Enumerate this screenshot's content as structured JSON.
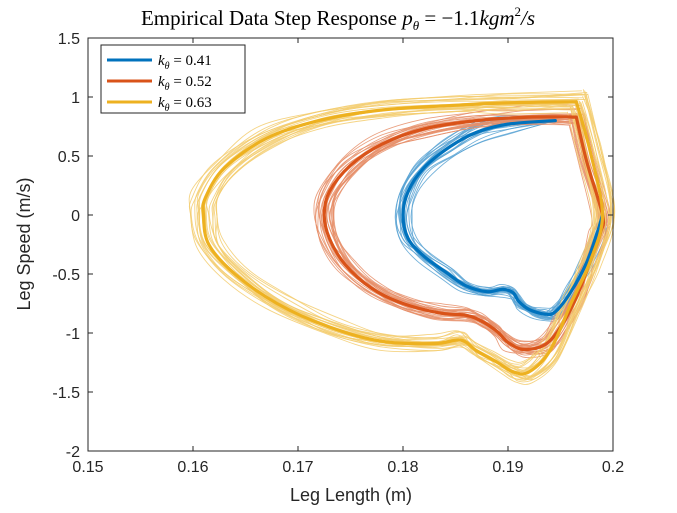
{
  "chart_data": {
    "type": "line",
    "title": "Empirical Data Step Response p_θ = −1.1kgm²/s",
    "title_parts": {
      "prefix": "Empirical Data Step Response ",
      "var": "p",
      "sub": "θ",
      "eq": " = −1.1",
      "unit": "kgm",
      "sup": "2",
      "tail": "/s"
    },
    "xlabel": "Leg Length (m)",
    "ylabel": "Leg Speed (m/s)",
    "xlim": [
      0.15,
      0.2
    ],
    "ylim": [
      -2,
      1.5
    ],
    "x_ticks": [
      "0.15",
      "0.16",
      "0.17",
      "0.18",
      "0.19",
      "0.2"
    ],
    "y_ticks": [
      "1.5",
      "1",
      "0.5",
      "0",
      "-0.5",
      "-1",
      "-1.5",
      "-2"
    ],
    "grid": false,
    "legend_position": "top-left",
    "series": [
      {
        "name": "k_θ = 0.41",
        "legend_label": {
          "var": "k",
          "sub": "θ",
          "rest": " = 0.41"
        },
        "color": "#0072BD",
        "points": [
          [
            0.1945,
            0.8
          ],
          [
            0.19,
            0.77
          ],
          [
            0.187,
            0.7
          ],
          [
            0.1845,
            0.58
          ],
          [
            0.182,
            0.4
          ],
          [
            0.1805,
            0.2
          ],
          [
            0.18,
            0.0
          ],
          [
            0.1805,
            -0.2
          ],
          [
            0.182,
            -0.35
          ],
          [
            0.184,
            -0.48
          ],
          [
            0.186,
            -0.6
          ],
          [
            0.188,
            -0.65
          ],
          [
            0.1895,
            -0.63
          ],
          [
            0.1905,
            -0.66
          ],
          [
            0.191,
            -0.73
          ],
          [
            0.192,
            -0.8
          ],
          [
            0.1935,
            -0.84
          ],
          [
            0.1945,
            -0.82
          ],
          [
            0.196,
            -0.65
          ],
          [
            0.1975,
            -0.4
          ],
          [
            0.1985,
            -0.15
          ],
          [
            0.199,
            0.0
          ]
        ]
      },
      {
        "name": "k_θ = 0.52",
        "legend_label": {
          "var": "k",
          "sub": "θ",
          "rest": " = 0.52"
        },
        "color": "#D95319",
        "points": [
          [
            0.1965,
            0.83
          ],
          [
            0.192,
            0.83
          ],
          [
            0.187,
            0.8
          ],
          [
            0.182,
            0.73
          ],
          [
            0.178,
            0.6
          ],
          [
            0.175,
            0.42
          ],
          [
            0.173,
            0.2
          ],
          [
            0.1725,
            0.0
          ],
          [
            0.173,
            -0.2
          ],
          [
            0.1745,
            -0.42
          ],
          [
            0.177,
            -0.62
          ],
          [
            0.18,
            -0.75
          ],
          [
            0.1835,
            -0.83
          ],
          [
            0.186,
            -0.85
          ],
          [
            0.1875,
            -0.9
          ],
          [
            0.189,
            -0.99
          ],
          [
            0.19,
            -1.08
          ],
          [
            0.1915,
            -1.14
          ],
          [
            0.1935,
            -1.1
          ],
          [
            0.195,
            -0.95
          ],
          [
            0.1965,
            -0.7
          ],
          [
            0.1978,
            -0.4
          ],
          [
            0.1988,
            -0.15
          ],
          [
            0.199,
            0.0
          ],
          [
            0.1975,
            0.45
          ],
          [
            0.1965,
            0.83
          ]
        ]
      },
      {
        "name": "k_θ = 0.63",
        "legend_label": {
          "var": "k",
          "sub": "θ",
          "rest": " = 0.63"
        },
        "color": "#EDB120",
        "points": [
          [
            0.1965,
            0.96
          ],
          [
            0.19,
            0.95
          ],
          [
            0.185,
            0.93
          ],
          [
            0.178,
            0.89
          ],
          [
            0.172,
            0.8
          ],
          [
            0.167,
            0.65
          ],
          [
            0.163,
            0.4
          ],
          [
            0.1612,
            0.15
          ],
          [
            0.161,
            0.0
          ],
          [
            0.1615,
            -0.25
          ],
          [
            0.164,
            -0.5
          ],
          [
            0.168,
            -0.75
          ],
          [
            0.173,
            -0.95
          ],
          [
            0.178,
            -1.07
          ],
          [
            0.183,
            -1.09
          ],
          [
            0.1855,
            -1.06
          ],
          [
            0.187,
            -1.15
          ],
          [
            0.189,
            -1.25
          ],
          [
            0.1905,
            -1.33
          ],
          [
            0.192,
            -1.33
          ],
          [
            0.194,
            -1.15
          ],
          [
            0.196,
            -0.75
          ],
          [
            0.1978,
            -0.4
          ],
          [
            0.199,
            0.0
          ],
          [
            0.1978,
            0.55
          ],
          [
            0.1965,
            0.96
          ]
        ]
      }
    ]
  }
}
